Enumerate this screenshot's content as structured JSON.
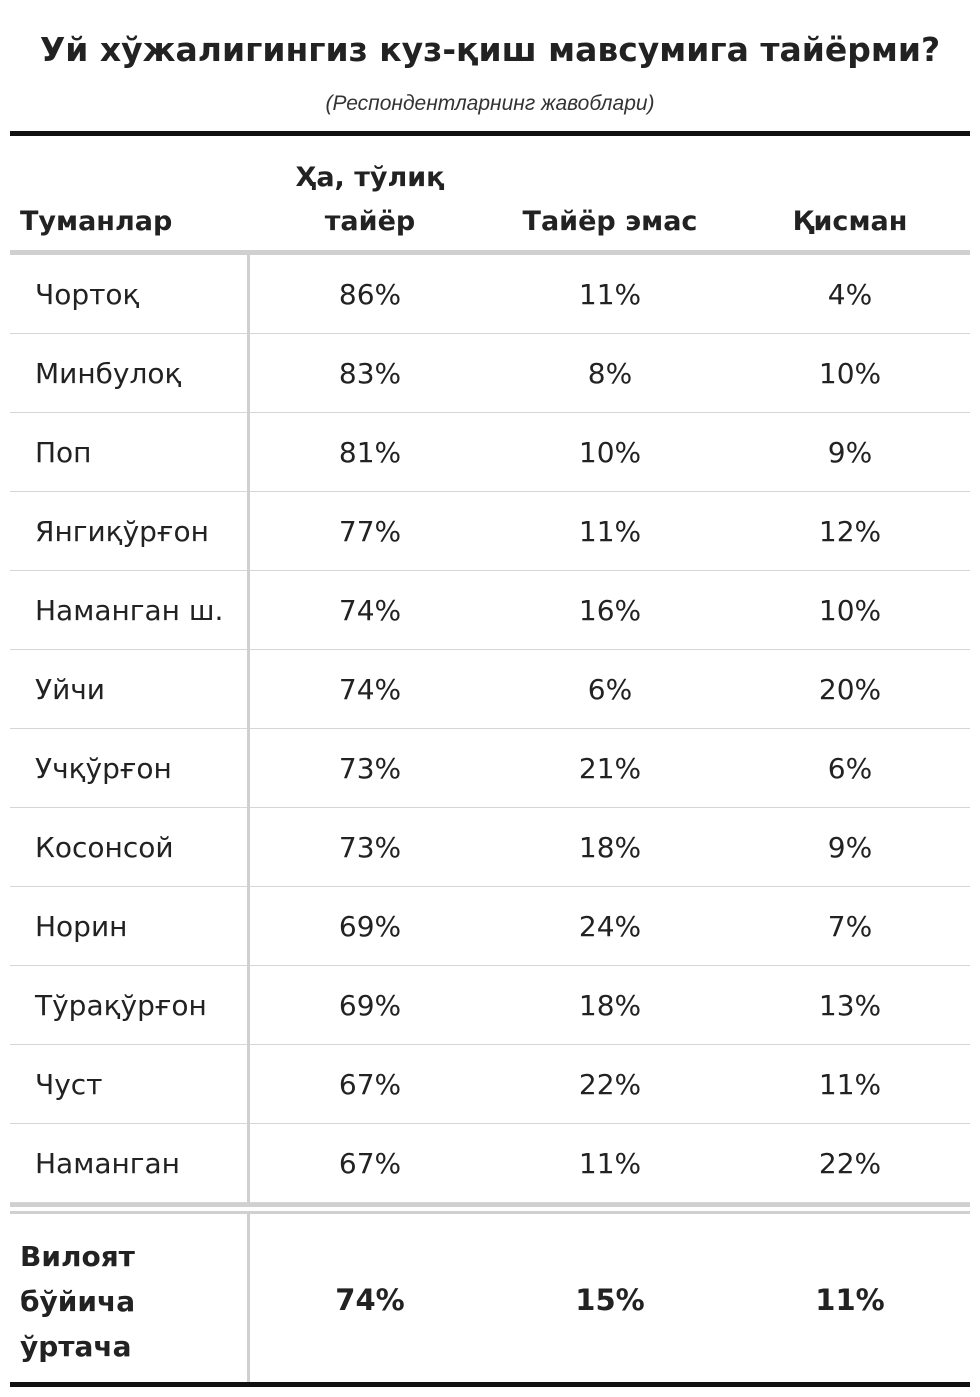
{
  "title": "Уй хўжалигингиз куз-қиш мавсумига тайёрми?",
  "subtitle": "(Респондентларнинг жавоблари)",
  "header": {
    "col_region": "Туманлар",
    "col_yes_line1": "Ҳа, тўлиқ",
    "col_yes_line2": "тайёр",
    "col_no": "Тайёр эмас",
    "col_partial": "Қисман"
  },
  "rows": [
    {
      "region": "Чортоқ",
      "yes": "86%",
      "no": "11%",
      "partial": "4%"
    },
    {
      "region": "Минбулоқ",
      "yes": "83%",
      "no": "8%",
      "partial": "10%"
    },
    {
      "region": "Поп",
      "yes": "81%",
      "no": "10%",
      "partial": "9%"
    },
    {
      "region": "Янгиқўрғон",
      "yes": "77%",
      "no": "11%",
      "partial": "12%"
    },
    {
      "region": "Наманган ш.",
      "yes": "74%",
      "no": "16%",
      "partial": "10%"
    },
    {
      "region": "Уйчи",
      "yes": "74%",
      "no": "6%",
      "partial": "20%"
    },
    {
      "region": "Учқўрғон",
      "yes": "73%",
      "no": "21%",
      "partial": "6%"
    },
    {
      "region": "Косонсой",
      "yes": "73%",
      "no": "18%",
      "partial": "9%"
    },
    {
      "region": "Норин",
      "yes": "69%",
      "no": "24%",
      "partial": "7%"
    },
    {
      "region": "Тўрақўрғон",
      "yes": "69%",
      "no": "18%",
      "partial": "13%"
    },
    {
      "region": "Чуст",
      "yes": "67%",
      "no": "22%",
      "partial": "11%"
    },
    {
      "region": "Наманган",
      "yes": "67%",
      "no": "11%",
      "partial": "22%"
    }
  ],
  "total": {
    "label_line1": "Вилоят",
    "label_line2": "бўйича",
    "label_line3": "ўртача",
    "yes": "74%",
    "no": "15%",
    "partial": "11%"
  },
  "chart_data": {
    "type": "table",
    "title": "Уй хўжалигингиз куз-қиш мавсумига тайёрми?",
    "subtitle": "(Респондентларнинг жавоблари)",
    "columns": [
      "Туманлар",
      "Ҳа, тўлиқ тайёр",
      "Тайёр эмас",
      "Қисман"
    ],
    "categories": [
      "Чортоқ",
      "Минбулоқ",
      "Поп",
      "Янгиқўрғон",
      "Наманган ш.",
      "Уйчи",
      "Учқўрғон",
      "Косонсой",
      "Норин",
      "Тўрақўрғон",
      "Чуст",
      "Наманган"
    ],
    "series": [
      {
        "name": "Ҳа, тўлиқ тайёр",
        "values": [
          86,
          83,
          81,
          77,
          74,
          74,
          73,
          73,
          69,
          69,
          67,
          67
        ],
        "total": 74
      },
      {
        "name": "Тайёр эмас",
        "values": [
          11,
          8,
          10,
          11,
          16,
          6,
          21,
          18,
          24,
          18,
          22,
          11
        ],
        "total": 15
      },
      {
        "name": "Қисман",
        "values": [
          4,
          10,
          9,
          12,
          10,
          20,
          6,
          9,
          7,
          13,
          11,
          22
        ],
        "total": 11
      }
    ],
    "total_label": "Вилоят бўйича ўртача",
    "unit": "%"
  }
}
